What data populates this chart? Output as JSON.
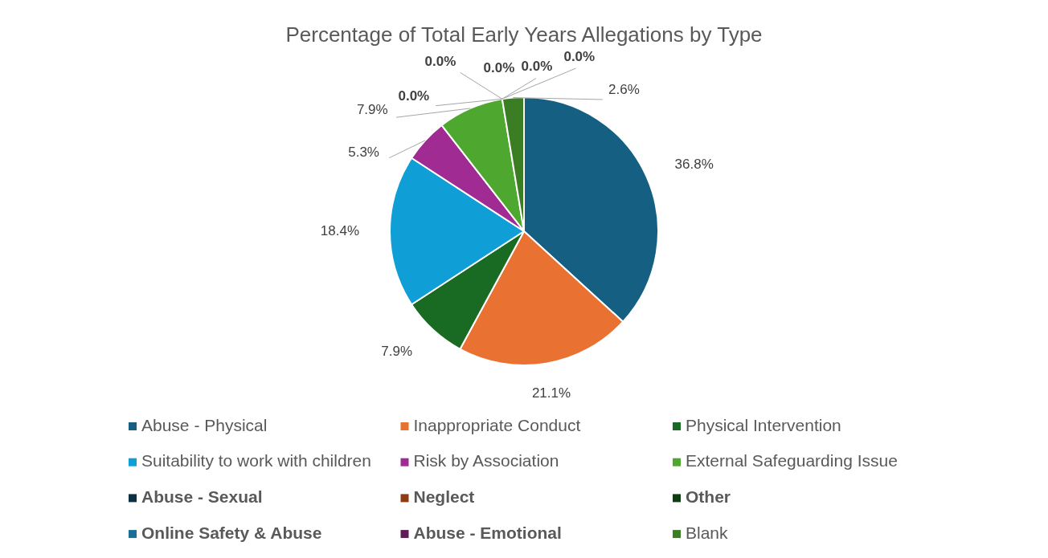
{
  "chart_data": {
    "type": "pie",
    "title": "Percentage of Total Early Years Allegations by Type",
    "categories": [
      "Abuse - Physical",
      "Inappropriate Conduct",
      "Physical Intervention",
      "Suitability to work with children",
      "Risk by Association",
      "External Safeguarding Issue",
      "Abuse - Sexual",
      "Neglect",
      "Other",
      "Online Safety & Abuse",
      "Abuse - Emotional",
      "Blank"
    ],
    "values": [
      36.8,
      21.1,
      7.9,
      18.4,
      5.3,
      7.9,
      0,
      0,
      0,
      0,
      0,
      2.6
    ],
    "colors": [
      "#156082",
      "#e97132",
      "#196b24",
      "#0f9ed5",
      "#a02b93",
      "#4ea72e",
      "#0b3041",
      "#8c3b12",
      "#0e3d13",
      "#1b6f96",
      "#601a57",
      "#3b7d23"
    ],
    "value_labels": [
      "36.8%",
      "21.1%",
      "7.9%",
      "18.4%",
      "5.3%",
      "7.9%",
      "0.0%",
      "0.0%",
      "0.0%",
      "0.0%",
      "0.0%",
      "2.6%"
    ],
    "legend": "bottom"
  }
}
